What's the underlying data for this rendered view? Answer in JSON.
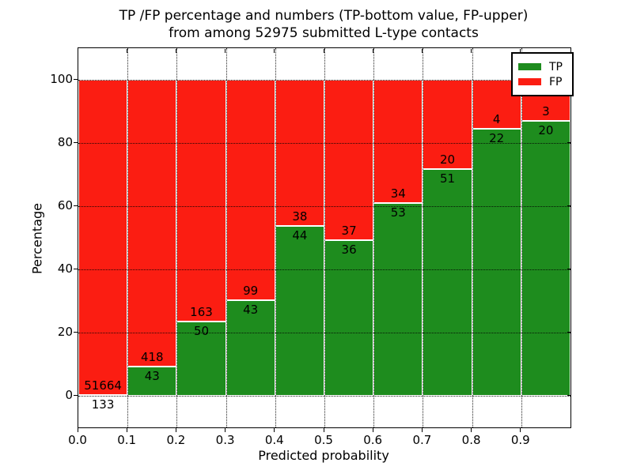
{
  "title": {
    "line1": "TP /FP percentage and numbers (TP-bottom value, FP-upper)",
    "line2": "from among 52975 submitted L-type contacts"
  },
  "colors": {
    "tp": "#1e8c1e",
    "fp": "#fb1d12",
    "frame": "#000000",
    "background": "#ffffff"
  },
  "chart_data": {
    "type": "bar",
    "stacked": true,
    "normalized_to_percent": true,
    "title": "TP /FP percentage and numbers (TP-bottom value, FP-upper) from among 52975 submitted L-type contacts",
    "xlabel": "Predicted probability",
    "ylabel": "Percentage",
    "bins_start": [
      0.0,
      0.1,
      0.2,
      0.3,
      0.4,
      0.5,
      0.6,
      0.7,
      0.8,
      0.9
    ],
    "bin_width": 0.1,
    "series": [
      {
        "name": "TP",
        "color": "#1e8c1e",
        "counts": [
          133,
          43,
          50,
          43,
          44,
          36,
          53,
          51,
          22,
          20
        ]
      },
      {
        "name": "FP",
        "color": "#fb1d12",
        "counts": [
          51664,
          418,
          163,
          99,
          38,
          37,
          34,
          20,
          4,
          3
        ]
      }
    ],
    "tp_percent": [
      0.26,
      9.33,
      23.47,
      30.28,
      53.66,
      49.32,
      60.92,
      71.83,
      84.62,
      86.96
    ],
    "total_contacts": 52975,
    "xlim": [
      0.0,
      1.0
    ],
    "ylim": [
      -10,
      110
    ],
    "xticks": [
      "0.0",
      "0.1",
      "0.2",
      "0.3",
      "0.4",
      "0.5",
      "0.6",
      "0.7",
      "0.8",
      "0.9"
    ],
    "yticks": [
      0,
      20,
      40,
      60,
      80,
      100
    ],
    "grid": "dotted black, both axes",
    "legend": {
      "position": "upper right",
      "entries": [
        "TP",
        "FP"
      ]
    }
  }
}
